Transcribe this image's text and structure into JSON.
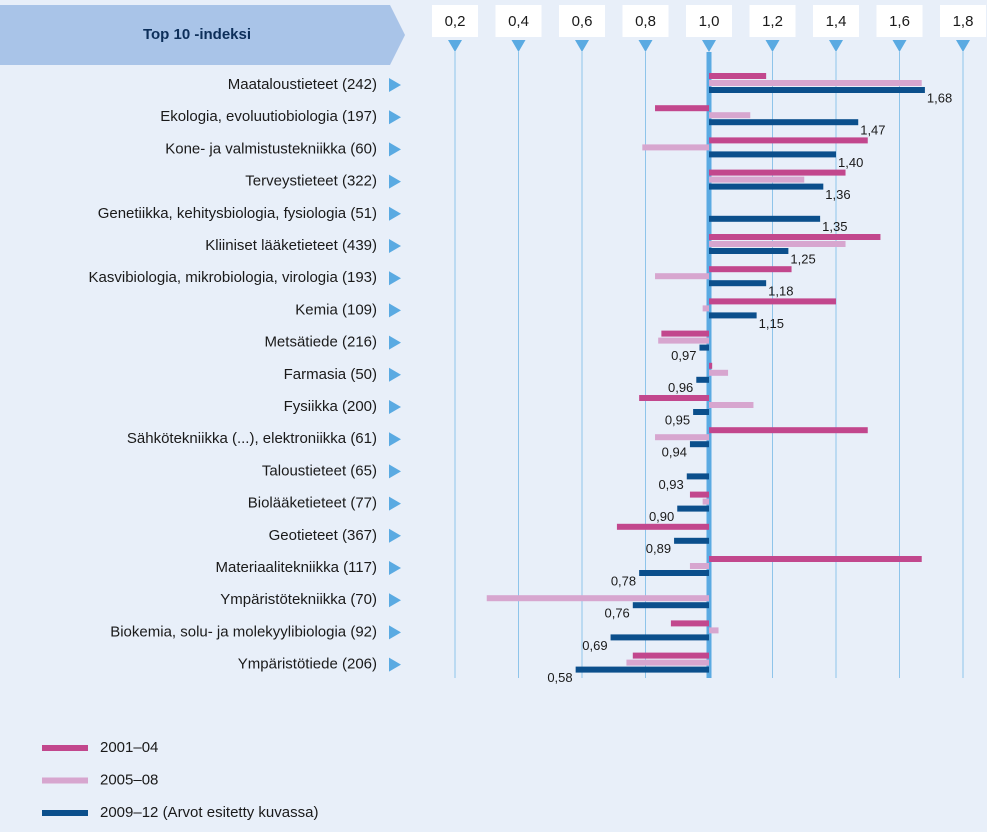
{
  "chart_data": {
    "type": "bar",
    "orientation": "horizontal",
    "title": "Top 10 -indeksi",
    "categories": [
      "Maataloustieteet (242)",
      "Ekologia, evoluutiobiologia (197)",
      "Kone- ja valmistustekniikka (60)",
      "Terveystieteet (322)",
      "Genetiikka, kehitysbiologia, fysiologia (51)",
      "Kliiniset lääketieteet (439)",
      "Kasvibiologia, mikrobiologia, virologia (193)",
      "Kemia (109)",
      "Metsätiede (216)",
      "Farmasia (50)",
      "Fysiikka (200)",
      "Sähkötekniikka (...), elektroniikka (61)",
      "Taloustieteet (65)",
      "Biolääketieteet (77)",
      "Geotieteet (367)",
      "Materiaalitekniikka (117)",
      "Ympäristötekniikka (70)",
      "Biokemia, solu- ja molekyylibiologia (92)",
      "Ympäristötiede (206)"
    ],
    "series": [
      {
        "name": "2001–04",
        "color": "#c2478d",
        "values": [
          1.18,
          0.83,
          1.5,
          1.43,
          null,
          1.54,
          1.26,
          1.4,
          0.85,
          1.01,
          0.78,
          1.5,
          null,
          0.94,
          0.71,
          1.67,
          null,
          0.88,
          0.76
        ]
      },
      {
        "name": "2005–08",
        "color": "#d7a6cf",
        "values": [
          1.67,
          1.13,
          0.79,
          1.3,
          null,
          1.43,
          0.83,
          0.98,
          0.84,
          1.06,
          1.14,
          0.83,
          null,
          0.98,
          null,
          0.94,
          0.3,
          1.03,
          0.74
        ]
      },
      {
        "name": "2009–12 (Arvot esitetty kuvassa)",
        "color": "#0b4f8c",
        "values": [
          1.68,
          1.47,
          1.4,
          1.36,
          1.35,
          1.25,
          1.18,
          1.15,
          0.97,
          0.96,
          0.95,
          0.94,
          0.93,
          0.9,
          0.89,
          0.78,
          0.76,
          0.69,
          0.58
        ],
        "value_labels": [
          "1,68",
          "1,47",
          "1,40",
          "1,36",
          "1,35",
          "1,25",
          "1,18",
          "1,15",
          "0,97",
          "0,96",
          "0,95",
          "0,94",
          "0,93",
          "0,90",
          "0,89",
          "0,78",
          "0,76",
          "0,69",
          "0,58"
        ]
      }
    ],
    "xlim": [
      0.2,
      1.8
    ],
    "xticks": [
      {
        "value": 0.2,
        "label": "0,2"
      },
      {
        "value": 0.4,
        "label": "0,4"
      },
      {
        "value": 0.6,
        "label": "0,6"
      },
      {
        "value": 0.8,
        "label": "0,8"
      },
      {
        "value": 1.0,
        "label": "1,0"
      },
      {
        "value": 1.2,
        "label": "1,2"
      },
      {
        "value": 1.4,
        "label": "1,4"
      },
      {
        "value": 1.6,
        "label": "1,6"
      },
      {
        "value": 1.8,
        "label": "1,8"
      }
    ],
    "baseline": 1,
    "grid": true
  }
}
